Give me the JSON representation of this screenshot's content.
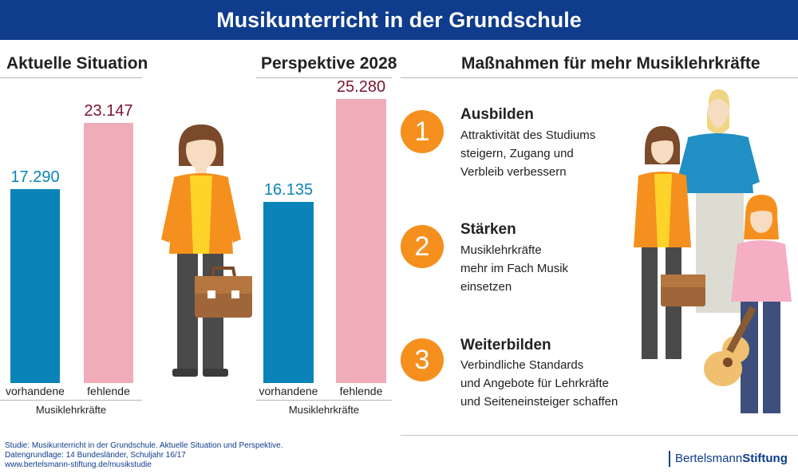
{
  "header": {
    "title": "Musikunterricht in der Grundschule"
  },
  "chart_data": [
    {
      "type": "bar",
      "title": "Aktuelle Situation",
      "categories": [
        "vorhandene",
        "fehlende"
      ],
      "values": [
        17290,
        23147
      ],
      "value_labels": [
        "17.290",
        "23.147"
      ],
      "xlabel": "Musiklehrkräfte",
      "ylabel": "",
      "ylim": [
        0,
        27000
      ],
      "colors": [
        "#0a84b8",
        "#f0adb9"
      ]
    },
    {
      "type": "bar",
      "title": "Perspektive 2028",
      "categories": [
        "vorhandene",
        "fehlende"
      ],
      "values": [
        16135,
        25280
      ],
      "value_labels": [
        "16.135",
        "25.280"
      ],
      "xlabel": "Musiklehrkräfte",
      "ylabel": "",
      "ylim": [
        0,
        27000
      ],
      "colors": [
        "#0a84b8",
        "#f0adb9"
      ]
    }
  ],
  "measures": {
    "title": "Maßnahmen für mehr Musiklehrkräfte",
    "items": [
      {
        "number": "1",
        "title": "Ausbilden",
        "lines": [
          "Attraktivität des Studiums",
          "steigern, Zugang und",
          "Verbleib verbessern"
        ]
      },
      {
        "number": "2",
        "title": "Stärken",
        "lines": [
          "Musiklehrkräfte",
          "mehr im Fach Musik",
          "einsetzen"
        ]
      },
      {
        "number": "3",
        "title": "Weiterbilden",
        "lines": [
          "Verbindliche Standards",
          "und Angebote für Lehrkräfte",
          "und Seiteneinsteiger schaffen"
        ]
      }
    ]
  },
  "footer": {
    "line1": "Studie: Musikunterricht in der Grundschule. Aktuelle Situation und Perspektive.",
    "line2": "Datengrundlage: 14 Bundesländer, Schuljahr 16/17",
    "line3": "www.bertelsmann-stiftung.de/musikstudie",
    "logo_part1": "Bertelsmann",
    "logo_part2": "Stiftung"
  },
  "colors": {
    "header_bg": "#0f3c8c",
    "existing": "#0a84b8",
    "missing": "#f0adb9",
    "existing_text": "#0a84b8",
    "missing_text": "#7a1530",
    "accent_orange": "#f5901e"
  }
}
